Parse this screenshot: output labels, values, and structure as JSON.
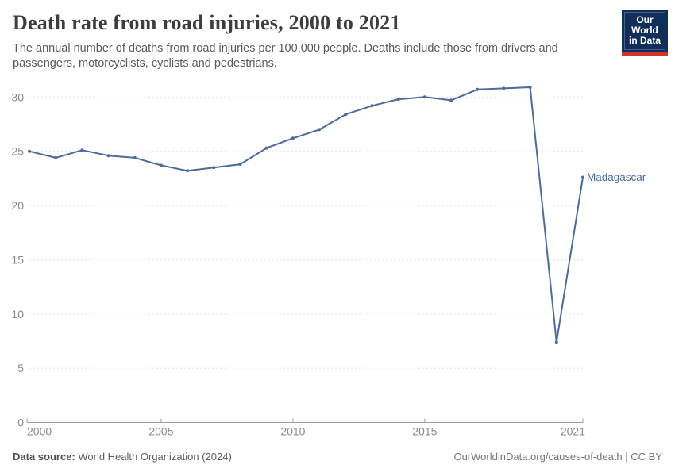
{
  "header": {
    "title": "Death rate from road injuries, 2000 to 2021",
    "subtitle_line1": "The annual number of deaths from road injuries per 100,000 people. Deaths include those from drivers and",
    "subtitle_line2": "passengers, motorcyclists, cyclists and pedestrians.",
    "logo_line1": "Our World",
    "logo_line2": "in Data"
  },
  "chart_data": {
    "type": "line",
    "title": "Death rate from road injuries, 2000 to 2021",
    "x": [
      2000,
      2001,
      2002,
      2003,
      2004,
      2005,
      2006,
      2007,
      2008,
      2009,
      2010,
      2011,
      2012,
      2013,
      2014,
      2015,
      2016,
      2017,
      2018,
      2019,
      2020,
      2021
    ],
    "series": [
      {
        "name": "Madagascar",
        "color": "#4C6A9C",
        "values": [
          25.0,
          24.4,
          25.1,
          24.6,
          24.4,
          23.7,
          23.2,
          23.5,
          23.8,
          25.3,
          26.2,
          27.0,
          28.4,
          29.2,
          29.8,
          30.0,
          29.7,
          30.7,
          30.8,
          30.9,
          7.4,
          22.6
        ]
      }
    ],
    "x_ticks": [
      2000,
      2005,
      2010,
      2015,
      2021
    ],
    "y_ticks": [
      0,
      5,
      10,
      15,
      20,
      25,
      30
    ],
    "xlim": [
      2000,
      2021
    ],
    "ylim": [
      0,
      32
    ],
    "xlabel": "",
    "ylabel": "",
    "grid": "horizontal-dashed",
    "legend_position": "end-of-line-label",
    "grid_color": "#e2e2e2",
    "axis_color": "#9e9e9e",
    "tick_label_color": "#8a8a8a",
    "tick_font_size": 14,
    "end_label_font_size": 13.5
  },
  "footer": {
    "source_label": "Data source:",
    "source_value": " World Health Organization (2024)",
    "credit": "OurWorldinData.org/causes-of-death | CC BY"
  }
}
